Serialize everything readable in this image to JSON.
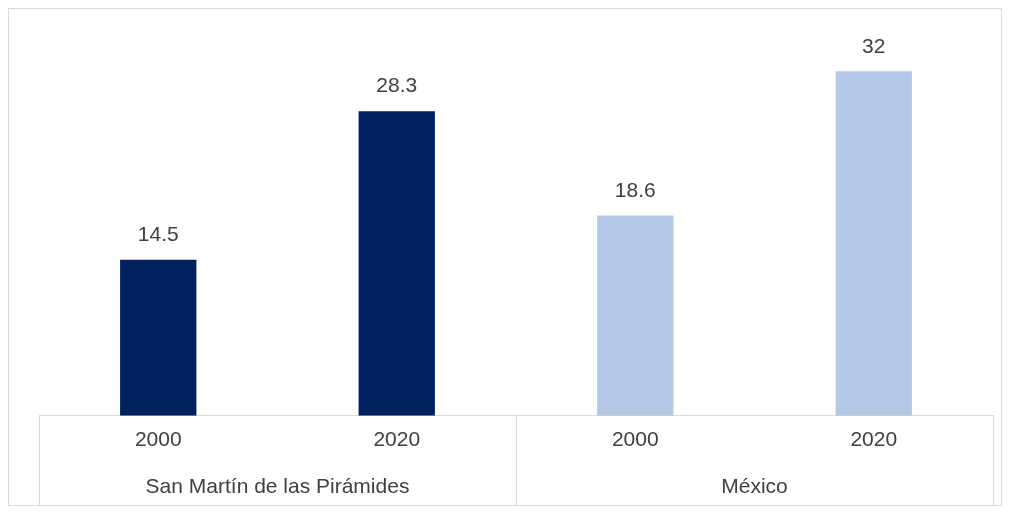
{
  "chart_data": {
    "type": "bar",
    "categories": [
      "2000",
      "2020",
      "2000",
      "2020"
    ],
    "values": [
      14.5,
      28.3,
      18.6,
      32
    ],
    "colors": [
      "#002060",
      "#002060",
      "#b4c7e7",
      "#b4c7e7"
    ],
    "data_labels": true,
    "grid": false,
    "legend": false,
    "annotations": [
      "San Martín de las Pirámides",
      "México"
    ]
  }
}
